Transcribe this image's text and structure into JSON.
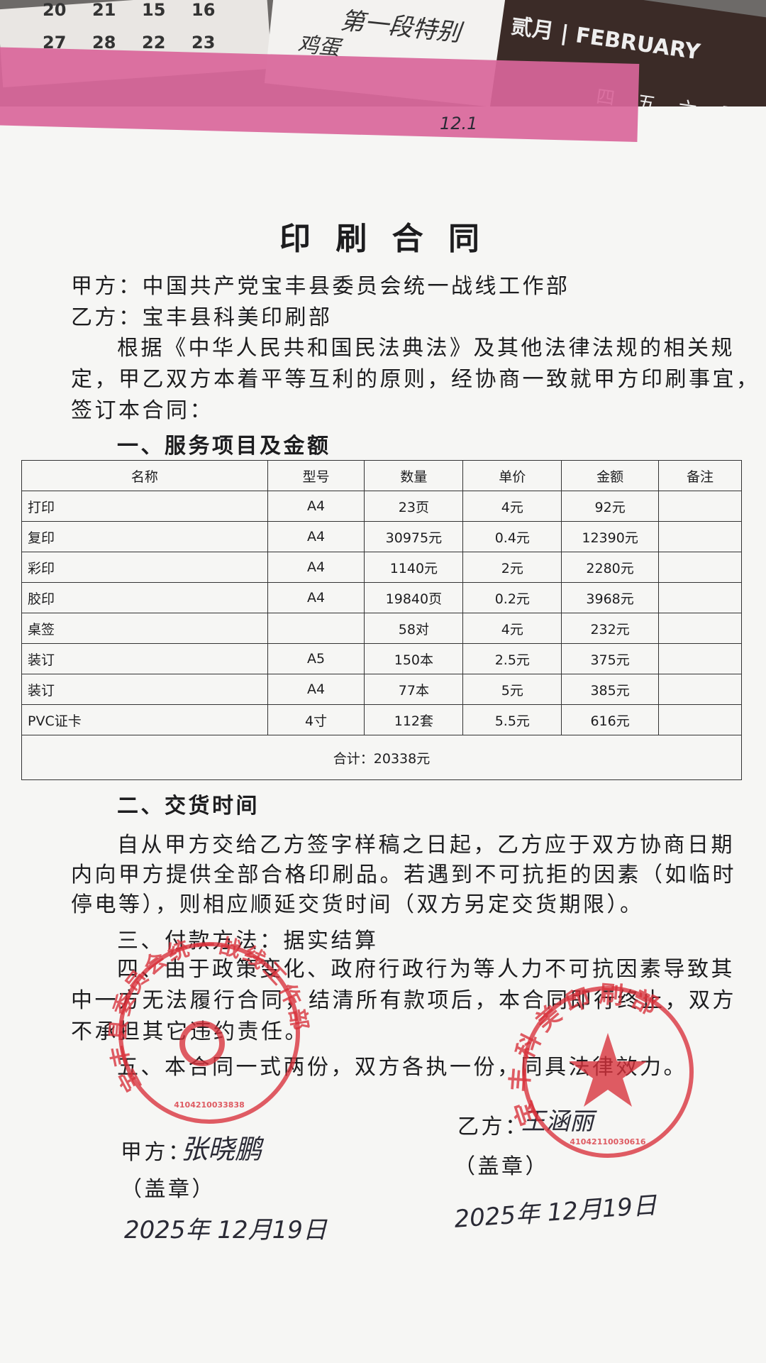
{
  "background": {
    "calendar_header": "贰月 | FEBRUARY",
    "calendar_days": [
      "20",
      "21",
      "15",
      "16",
      "27",
      "28",
      "22",
      "23"
    ],
    "weekdays": "四 五 六 日",
    "note": "第一段特别",
    "note2": "鸡蛋",
    "mark": "12.1"
  },
  "document": {
    "title": "印 刷 合 同",
    "party_a": "甲方：中国共产党宝丰县委员会统一战线工作部",
    "party_b": "乙方：宝丰县科美印刷部",
    "intro": [
      "根据《中华人民共和国民法典法》及其他法律法规的相关规",
      "定，甲乙双方本着平等互利的原则，经协商一致就甲方印刷事宜，",
      "签订本合同："
    ],
    "section1": "一、服务项目及金额",
    "table": {
      "headers": [
        "名称",
        "型号",
        "数量",
        "单价",
        "金额",
        "备注"
      ],
      "rows": [
        [
          "打印",
          "A4",
          "23页",
          "4元",
          "92元",
          null
        ],
        [
          "复印",
          "A4",
          "30975元",
          "0.4元",
          "12390元",
          null
        ],
        [
          "彩印",
          "A4",
          "1140元",
          "2元",
          "2280元",
          null
        ],
        [
          "胶印",
          "A4",
          "19840页",
          "0.2元",
          "3968元",
          null
        ],
        [
          "桌签",
          null,
          "58对",
          "4元",
          "232元",
          null
        ],
        [
          "装订",
          "A5",
          "150本",
          "2.5元",
          "375元",
          null
        ],
        [
          "装订",
          "A4",
          "77本",
          "5元",
          "385元",
          null
        ],
        [
          "PVC证卡",
          "4寸",
          "112套",
          "5.5元",
          "616元",
          null
        ]
      ],
      "total": "合计：20338元"
    },
    "section2": "二、交货时间",
    "section2_body": [
      "自从甲方交给乙方签字样稿之日起，乙方应于双方协商日期",
      "内向甲方提供全部合格印刷品。若遇到不可抗拒的因素（如临时",
      "停电等），则相应顺延交货时间（双方另定交货期限）。"
    ],
    "section3": "三、付款方法：据实结算",
    "section4": [
      "四、由于政策变化、政府行政行为等人力不可抗因素导致其",
      "中一方无法履行合同，结清所有款项后，本合同即行终止，双方",
      "不承担其它违约责任。"
    ],
    "section5": "五、本合同一式两份，双方各执一份，同具法律效力。",
    "sign_a": {
      "label": "甲方：",
      "name": "张晓鹏",
      "seal": "（盖章）",
      "date": "2025年 12月19日",
      "stamp": "宝丰县委员会统一战线工作部",
      "stamp_no": "4104210033838"
    },
    "sign_b": {
      "label": "乙方：",
      "name": "王涵丽",
      "seal": "（盖章）",
      "date": "2025年 12月19日",
      "stamp": "宝丰科美印刷部",
      "stamp_no": "41042110030616"
    }
  }
}
